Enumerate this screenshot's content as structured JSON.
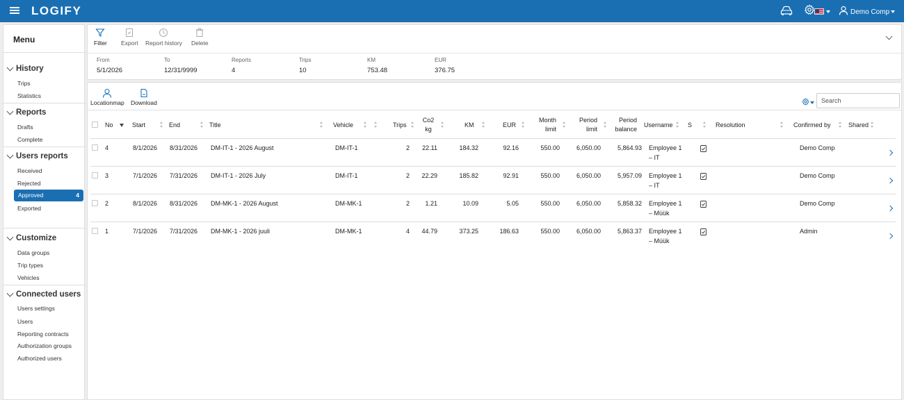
{
  "header": {
    "app_name": "LOGIFY",
    "user_name": "Demo Comp"
  },
  "sidebar": {
    "title": "Menu",
    "sections": [
      {
        "label": "History",
        "items": [
          {
            "label": "Trips"
          },
          {
            "label": "Statistics"
          }
        ]
      },
      {
        "label": "Reports",
        "items": [
          {
            "label": "Drafts"
          },
          {
            "label": "Complete"
          }
        ]
      },
      {
        "label": "Users reports",
        "items": [
          {
            "label": "Received"
          },
          {
            "label": "Rejected"
          },
          {
            "label": "Approved",
            "badge": "4",
            "active": true
          },
          {
            "label": "Exported"
          }
        ]
      },
      {
        "label": "Customize",
        "items": [
          {
            "label": "Data groups"
          },
          {
            "label": "Trip types"
          },
          {
            "label": "Vehicles"
          }
        ]
      },
      {
        "label": "Connected users",
        "items": [
          {
            "label": "Users settings"
          },
          {
            "label": "Users"
          },
          {
            "label": "Reporting contracts"
          },
          {
            "label": "Authorization groups"
          },
          {
            "label": "Authorized users"
          }
        ]
      }
    ]
  },
  "toolbar": {
    "filter": "Filter",
    "export": "Export",
    "report_history": "Report history",
    "delete": "Delete"
  },
  "summary": {
    "from_label": "From",
    "from_value": "5/1/2026",
    "to_label": "To",
    "to_value": "12/31/9999",
    "reports_label": "Reports",
    "reports_value": "4",
    "trips_label": "Trips",
    "trips_value": "10",
    "km_label": "KM",
    "km_value": "753.48",
    "eur_label": "EUR",
    "eur_value": "376.75"
  },
  "table_toolbar": {
    "locationmap": "Locationmap",
    "download": "Download",
    "search_placeholder": "Search"
  },
  "table": {
    "columns": {
      "no": "No",
      "start": "Start",
      "end": "End",
      "title": "Title",
      "vehicle": "Vehicle",
      "trips": "Trips",
      "co2_1": "Co2",
      "co2_2": "kg",
      "km": "KM",
      "eur": "EUR",
      "month_limit_1": "Month",
      "month_limit_2": "limit",
      "period_limit_1": "Period",
      "period_limit_2": "limit",
      "period_balance_1": "Period",
      "period_balance_2": "balance",
      "username": "Username",
      "s": "S",
      "resolution": "Resolution",
      "confirmed_by": "Confirmed by",
      "shared": "Shared"
    },
    "rows": [
      {
        "no": "4",
        "start": "8/1/2026",
        "end": "8/31/2026",
        "title": "DM-IT-1 - 2026 August",
        "vehicle": "DM-IT-1",
        "trips": "2",
        "co2": "22.11",
        "km": "184.32",
        "eur": "92.16",
        "month_limit": "550.00",
        "period_limit": "6,050.00",
        "period_balance": "5,864.93",
        "user1": "Employee 1",
        "user2": "– IT",
        "confirmed_by": "Demo Comp"
      },
      {
        "no": "3",
        "start": "7/1/2026",
        "end": "7/31/2026",
        "title": "DM-IT-1 - 2026 July",
        "vehicle": "DM-IT-1",
        "trips": "2",
        "co2": "22.29",
        "km": "185.82",
        "eur": "92.91",
        "month_limit": "550.00",
        "period_limit": "6,050.00",
        "period_balance": "5,957.09",
        "user1": "Employee 1",
        "user2": "– IT",
        "confirmed_by": "Demo Comp"
      },
      {
        "no": "2",
        "start": "8/1/2026",
        "end": "8/31/2026",
        "title": "DM-MK-1 - 2026 August",
        "vehicle": "DM-MK-1",
        "trips": "2",
        "co2": "1.21",
        "km": "10.09",
        "eur": "5.05",
        "month_limit": "550.00",
        "period_limit": "6,050.00",
        "period_balance": "5,858.32",
        "user1": "Employee 1",
        "user2": "– Müük",
        "confirmed_by": "Demo Comp"
      },
      {
        "no": "1",
        "start": "7/1/2026",
        "end": "7/31/2026",
        "title": "DM-MK-1 - 2026 juuli",
        "vehicle": "DM-MK-1",
        "trips": "4",
        "co2": "44.79",
        "km": "373.25",
        "eur": "186.63",
        "month_limit": "550.00",
        "period_limit": "6,050.00",
        "period_balance": "5,863.37",
        "user1": "Employee 1",
        "user2": "– Müük",
        "confirmed_by": "Admin"
      }
    ]
  }
}
